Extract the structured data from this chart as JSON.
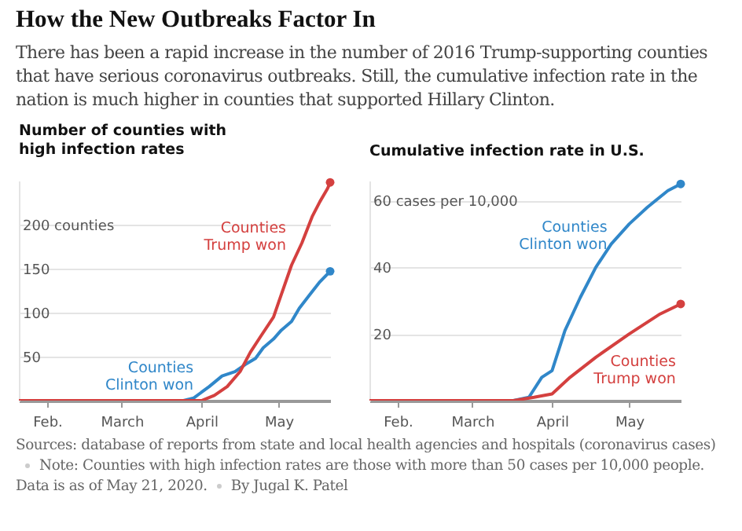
{
  "chart_data": [
    {
      "type": "line",
      "title": "How the New Outbreaks Factor In",
      "subtitle": "There has been a rapid increase in the number of 2016 Trump-supporting counties that have serious coronavirus outbreaks. Still, the cumulative infection rate in the nation is much higher in counties that supported Hillary Clinton.",
      "ylabel": "Number of counties with high infection rates",
      "annotations": [
        "Sources: database of reports from state and local health agencies and hospitals (coronavirus cases)",
        "Note: Counties with high infection rates are those with more than 50 cases per 10,000 people. Data is as of May 21, 2020.",
        "By Jugal K. Patel"
      ],
      "xlim": [
        "2020-01-21",
        "2020-05-21"
      ],
      "xticks": [
        {
          "value": "2020-02-01",
          "label": "Feb."
        },
        {
          "value": "2020-03-01",
          "label": "March"
        },
        {
          "value": "2020-04-01",
          "label": "April"
        },
        {
          "value": "2020-05-01",
          "label": "May"
        }
      ],
      "ylim": [
        0,
        250
      ],
      "yticks": [
        50,
        100,
        150,
        {
          "value": 200,
          "label": "200 counties"
        }
      ],
      "grid": "y",
      "series": [
        {
          "name": "Counties Clinton won",
          "color": "#3087c9",
          "x": [
            "2020-01-21",
            "2020-03-25",
            "2020-03-29",
            "2020-04-04",
            "2020-04-09",
            "2020-04-14",
            "2020-04-18",
            "2020-04-22",
            "2020-04-25",
            "2020-04-29",
            "2020-05-02",
            "2020-05-06",
            "2020-05-09",
            "2020-05-13",
            "2020-05-17",
            "2020-05-21"
          ],
          "values": [
            0,
            0,
            3,
            16,
            28,
            33,
            41,
            48,
            60,
            70,
            80,
            90,
            105,
            120,
            135,
            147
          ]
        },
        {
          "name": "Counties Trump won",
          "color": "#d4403f",
          "x": [
            "2020-01-21",
            "2020-04-01",
            "2020-04-06",
            "2020-04-11",
            "2020-04-16",
            "2020-04-20",
            "2020-04-24",
            "2020-04-29",
            "2020-05-01",
            "2020-05-06",
            "2020-05-10",
            "2020-05-14",
            "2020-05-17",
            "2020-05-20",
            "2020-05-21"
          ],
          "values": [
            0,
            0,
            6,
            16,
            33,
            55,
            73,
            95,
            112,
            154,
            179,
            209,
            226,
            241,
            248
          ]
        },
        {
          "type": "scatter",
          "color": "#3087c9",
          "x": [
            "2020-05-21"
          ],
          "values": [
            147
          ]
        },
        {
          "type": "scatter",
          "color": "#d4403f",
          "x": [
            "2020-05-21"
          ],
          "values": [
            248
          ]
        }
      ]
    },
    {
      "type": "line",
      "ylabel": "Cumulative infection rate in U.S.",
      "xlim": [
        "2020-01-21",
        "2020-05-21"
      ],
      "xticks": [
        {
          "value": "2020-02-01",
          "label": "Feb."
        },
        {
          "value": "2020-03-01",
          "label": "March"
        },
        {
          "value": "2020-04-01",
          "label": "April"
        },
        {
          "value": "2020-05-01",
          "label": "May"
        }
      ],
      "ylim": [
        0,
        66
      ],
      "yticks": [
        20,
        40,
        {
          "value": 60,
          "label": "60 cases per 10,000"
        }
      ],
      "grid": "y",
      "series": [
        {
          "name": "Counties Clinton won",
          "color": "#3087c9",
          "x": [
            "2020-01-21",
            "2020-03-17",
            "2020-03-23",
            "2020-03-28",
            "2020-04-01",
            "2020-04-06",
            "2020-04-12",
            "2020-04-18",
            "2020-04-24",
            "2020-05-01",
            "2020-05-08",
            "2020-05-16",
            "2020-05-21"
          ],
          "values": [
            0,
            0,
            1,
            7,
            9,
            21,
            31,
            40,
            47,
            53,
            58,
            63,
            65
          ]
        },
        {
          "name": "Counties Trump won",
          "color": "#d4403f",
          "x": [
            "2020-01-21",
            "2020-03-17",
            "2020-03-25",
            "2020-04-01",
            "2020-04-08",
            "2020-04-18",
            "2020-05-01",
            "2020-05-13",
            "2020-05-21"
          ],
          "values": [
            0,
            0,
            1,
            2,
            7,
            13,
            20,
            26,
            29
          ]
        },
        {
          "type": "scatter",
          "color": "#3087c9",
          "x": [
            "2020-05-21"
          ],
          "values": [
            65
          ]
        },
        {
          "type": "scatter",
          "color": "#d4403f",
          "x": [
            "2020-05-21"
          ],
          "values": [
            29
          ]
        }
      ]
    }
  ]
}
